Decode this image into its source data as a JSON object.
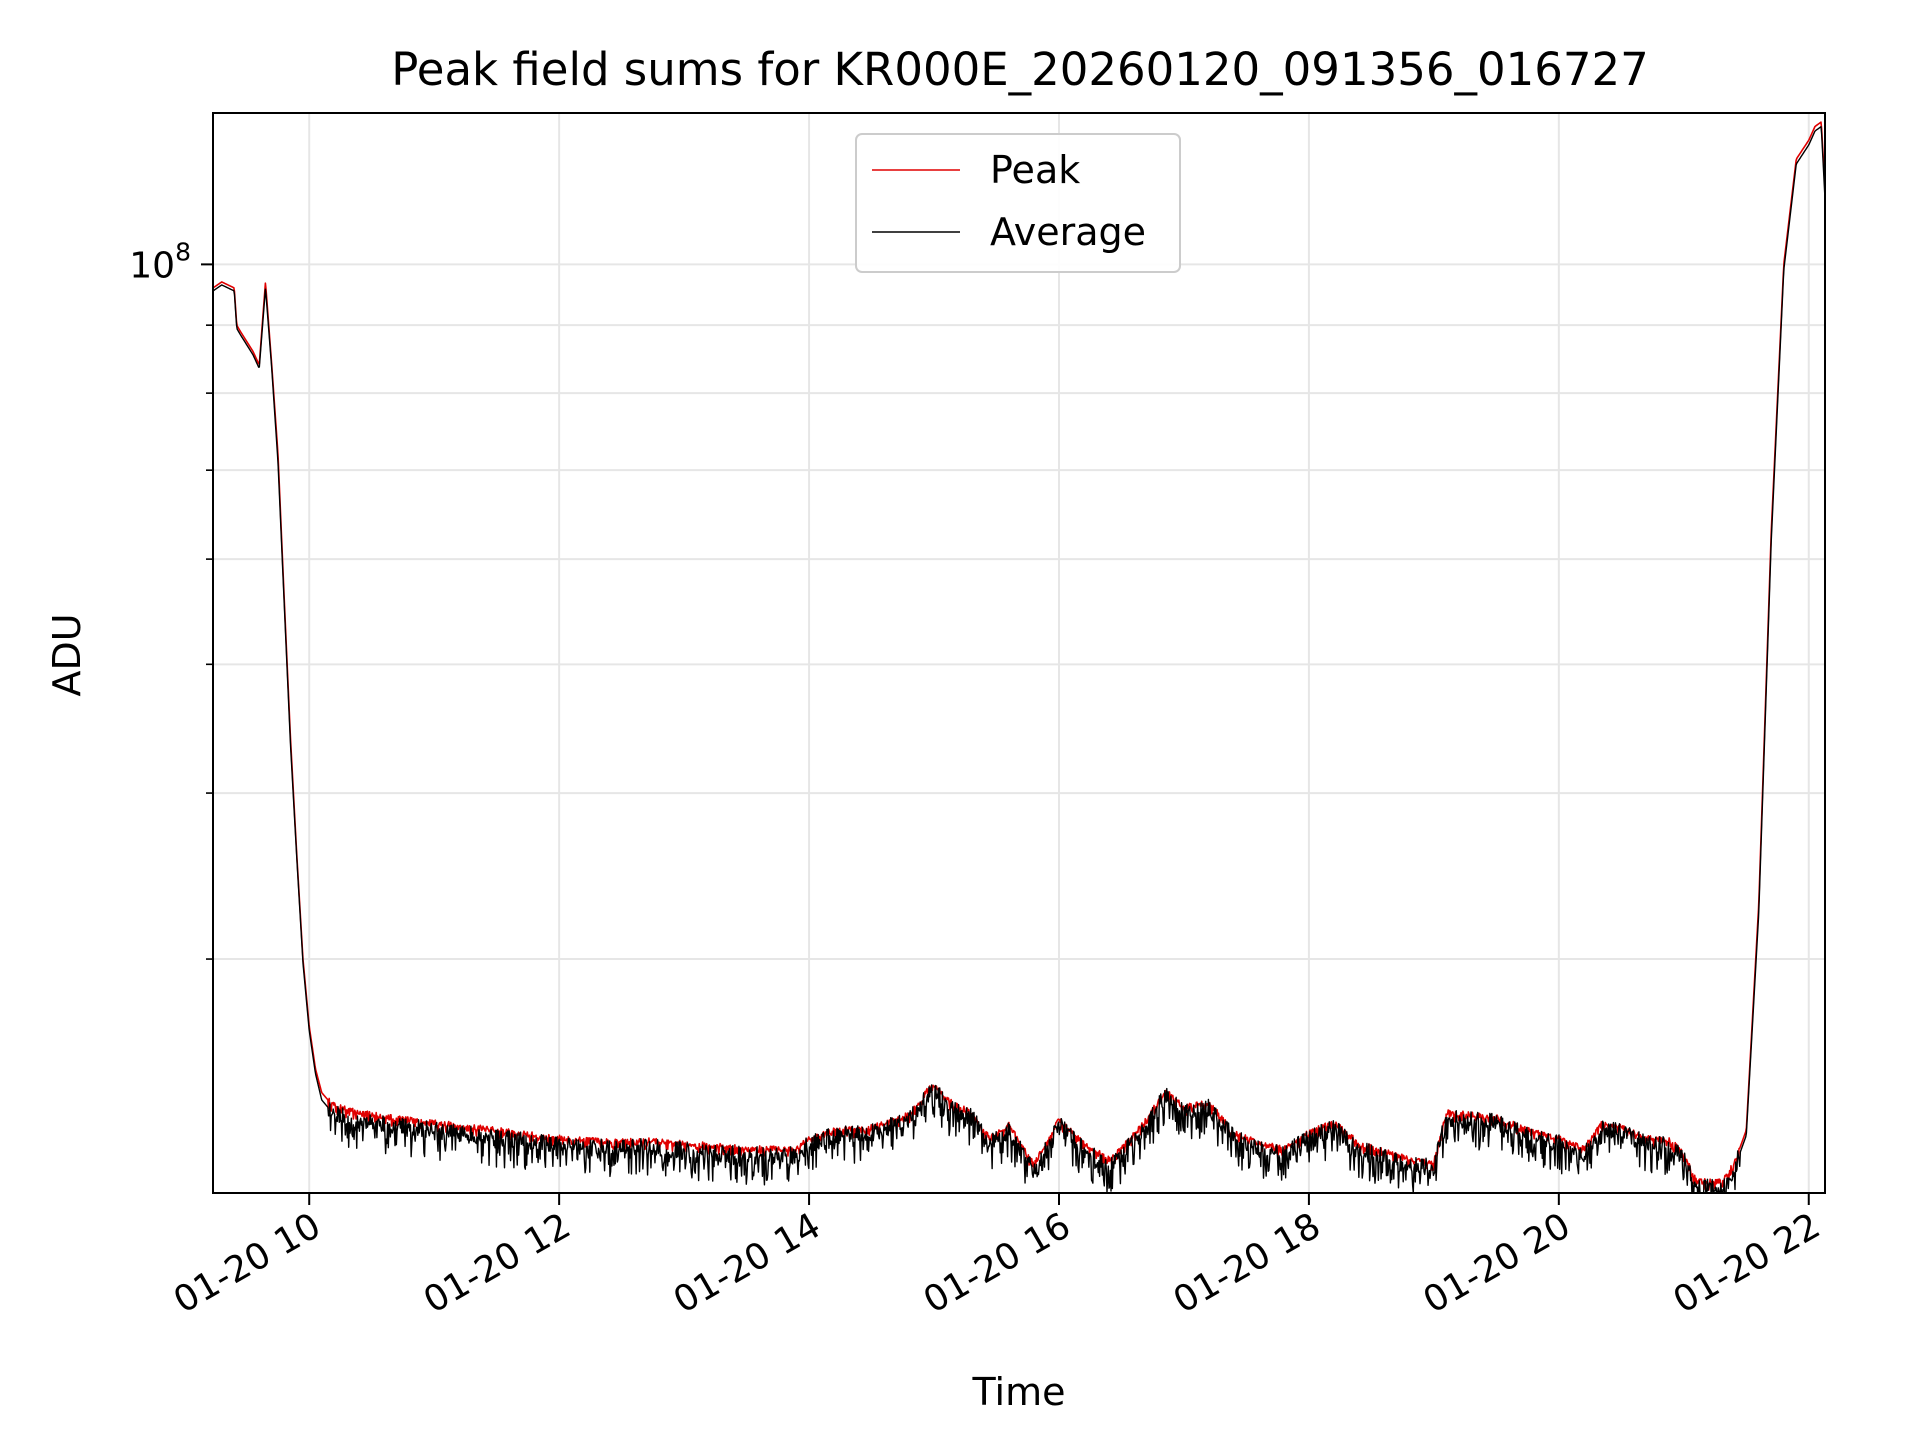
{
  "chart_data": {
    "type": "line",
    "title": "Peak field sums for KR000E_20260120_091356_016727",
    "xlabel": "Time",
    "ylabel": "ADU",
    "yscale": "log",
    "xlim": [
      9.23,
      22.13
    ],
    "ylim": [
      20000000,
      130000000
    ],
    "x_ticks": [
      {
        "value": 10,
        "label": "01-20 10"
      },
      {
        "value": 12,
        "label": "01-20 12"
      },
      {
        "value": 14,
        "label": "01-20 14"
      },
      {
        "value": 16,
        "label": "01-20 16"
      },
      {
        "value": 18,
        "label": "01-20 18"
      },
      {
        "value": 20,
        "label": "01-20 20"
      },
      {
        "value": 22,
        "label": "01-20 22"
      }
    ],
    "y_major_ticks": [
      {
        "value": 100000000,
        "base": "10",
        "exp": "8"
      }
    ],
    "y_minor_ticks": [
      30000000,
      40000000,
      50000000,
      60000000,
      70000000,
      80000000,
      90000000
    ],
    "grid": true,
    "legend_position": "top-center",
    "series": [
      {
        "name": "Peak",
        "color": "#e00000",
        "x": [
          9.23,
          9.3,
          9.4,
          9.42,
          9.45,
          9.55,
          9.6,
          9.65,
          9.7,
          9.75,
          9.8,
          9.85,
          9.9,
          9.95,
          10.0,
          10.05,
          10.1,
          10.15,
          10.2,
          10.3,
          10.5,
          11.0,
          11.5,
          12.0,
          12.3,
          12.7,
          13.0,
          13.5,
          13.9,
          14.0,
          14.2,
          14.5,
          14.8,
          14.95,
          15.0,
          15.1,
          15.3,
          15.45,
          15.6,
          15.8,
          16.0,
          16.2,
          16.4,
          16.5,
          16.7,
          16.85,
          17.0,
          17.2,
          17.4,
          17.6,
          17.8,
          18.0,
          18.2,
          18.4,
          18.6,
          18.8,
          19.0,
          19.1,
          19.3,
          19.5,
          19.7,
          19.9,
          20.0,
          20.2,
          20.35,
          20.5,
          20.7,
          20.9,
          21.0,
          21.1,
          21.3,
          21.4,
          21.5,
          21.6,
          21.7,
          21.8,
          21.9,
          22.0,
          22.05,
          22.1,
          22.13
        ],
        "values": [
          96000000,
          97000000,
          96000000,
          90000000,
          89000000,
          86000000,
          84000000,
          97000000,
          84000000,
          72000000,
          56000000,
          44000000,
          36000000,
          30000000,
          26700000,
          24800000,
          23800000,
          23500000,
          23300000,
          23100000,
          22900000,
          22600000,
          22300000,
          22000000,
          21900000,
          21900000,
          21800000,
          21600000,
          21600000,
          22000000,
          22300000,
          22400000,
          22900000,
          23900000,
          24200000,
          23500000,
          23000000,
          22000000,
          22500000,
          21000000,
          22700000,
          21800000,
          21200000,
          21600000,
          22700000,
          23900000,
          23200000,
          23400000,
          22200000,
          21800000,
          21600000,
          22200000,
          22600000,
          21800000,
          21500000,
          21200000,
          21100000,
          23000000,
          22900000,
          22800000,
          22400000,
          22100000,
          22000000,
          21600000,
          22600000,
          22400000,
          22000000,
          21900000,
          21400000,
          20400000,
          20400000,
          21000000,
          22300000,
          33000000,
          63000000,
          100000000,
          120000000,
          124000000,
          127000000,
          128000000,
          114000000
        ]
      },
      {
        "name": "Average",
        "color": "#000000",
        "x": [
          9.23,
          9.3,
          9.4,
          9.42,
          9.45,
          9.55,
          9.6,
          9.65,
          9.7,
          9.75,
          9.8,
          9.85,
          9.9,
          9.95,
          10.0,
          10.05,
          10.1,
          10.15,
          10.2,
          10.3,
          10.5,
          11.0,
          11.5,
          12.0,
          12.3,
          12.7,
          13.0,
          13.5,
          13.9,
          14.0,
          14.2,
          14.5,
          14.8,
          14.95,
          15.0,
          15.1,
          15.3,
          15.45,
          15.6,
          15.8,
          16.0,
          16.2,
          16.4,
          16.5,
          16.7,
          16.85,
          17.0,
          17.2,
          17.4,
          17.6,
          17.8,
          18.0,
          18.2,
          18.4,
          18.6,
          18.8,
          19.0,
          19.1,
          19.3,
          19.5,
          19.7,
          19.9,
          20.0,
          20.2,
          20.35,
          20.5,
          20.7,
          20.9,
          21.0,
          21.1,
          21.3,
          21.4,
          21.5,
          21.6,
          21.7,
          21.8,
          21.9,
          22.0,
          22.05,
          22.1,
          22.13
        ],
        "values": [
          95500000,
          96500000,
          95500000,
          89500000,
          88500000,
          85500000,
          83500000,
          96000000,
          83500000,
          71000000,
          55500000,
          43500000,
          35800000,
          29800000,
          26500000,
          24600000,
          23500000,
          23200000,
          23000000,
          22800000,
          22600000,
          22300000,
          22000000,
          21750000,
          21650000,
          21650000,
          21550000,
          21350000,
          21350000,
          21800000,
          22100000,
          22200000,
          22700000,
          23700000,
          24000000,
          23300000,
          22800000,
          21800000,
          22300000,
          20800000,
          22500000,
          21600000,
          21000000,
          21400000,
          22500000,
          23700000,
          23000000,
          23200000,
          22000000,
          21600000,
          21400000,
          22000000,
          22400000,
          21600000,
          21300000,
          21000000,
          20900000,
          22800000,
          22700000,
          22600000,
          22200000,
          21900000,
          21800000,
          21400000,
          22400000,
          22200000,
          21800000,
          21700000,
          21200000,
          20200000,
          20200000,
          20800000,
          22100000,
          32500000,
          62000000,
          99000000,
          119000000,
          123000000,
          126000000,
          127000000,
          112000000
        ]
      }
    ]
  }
}
